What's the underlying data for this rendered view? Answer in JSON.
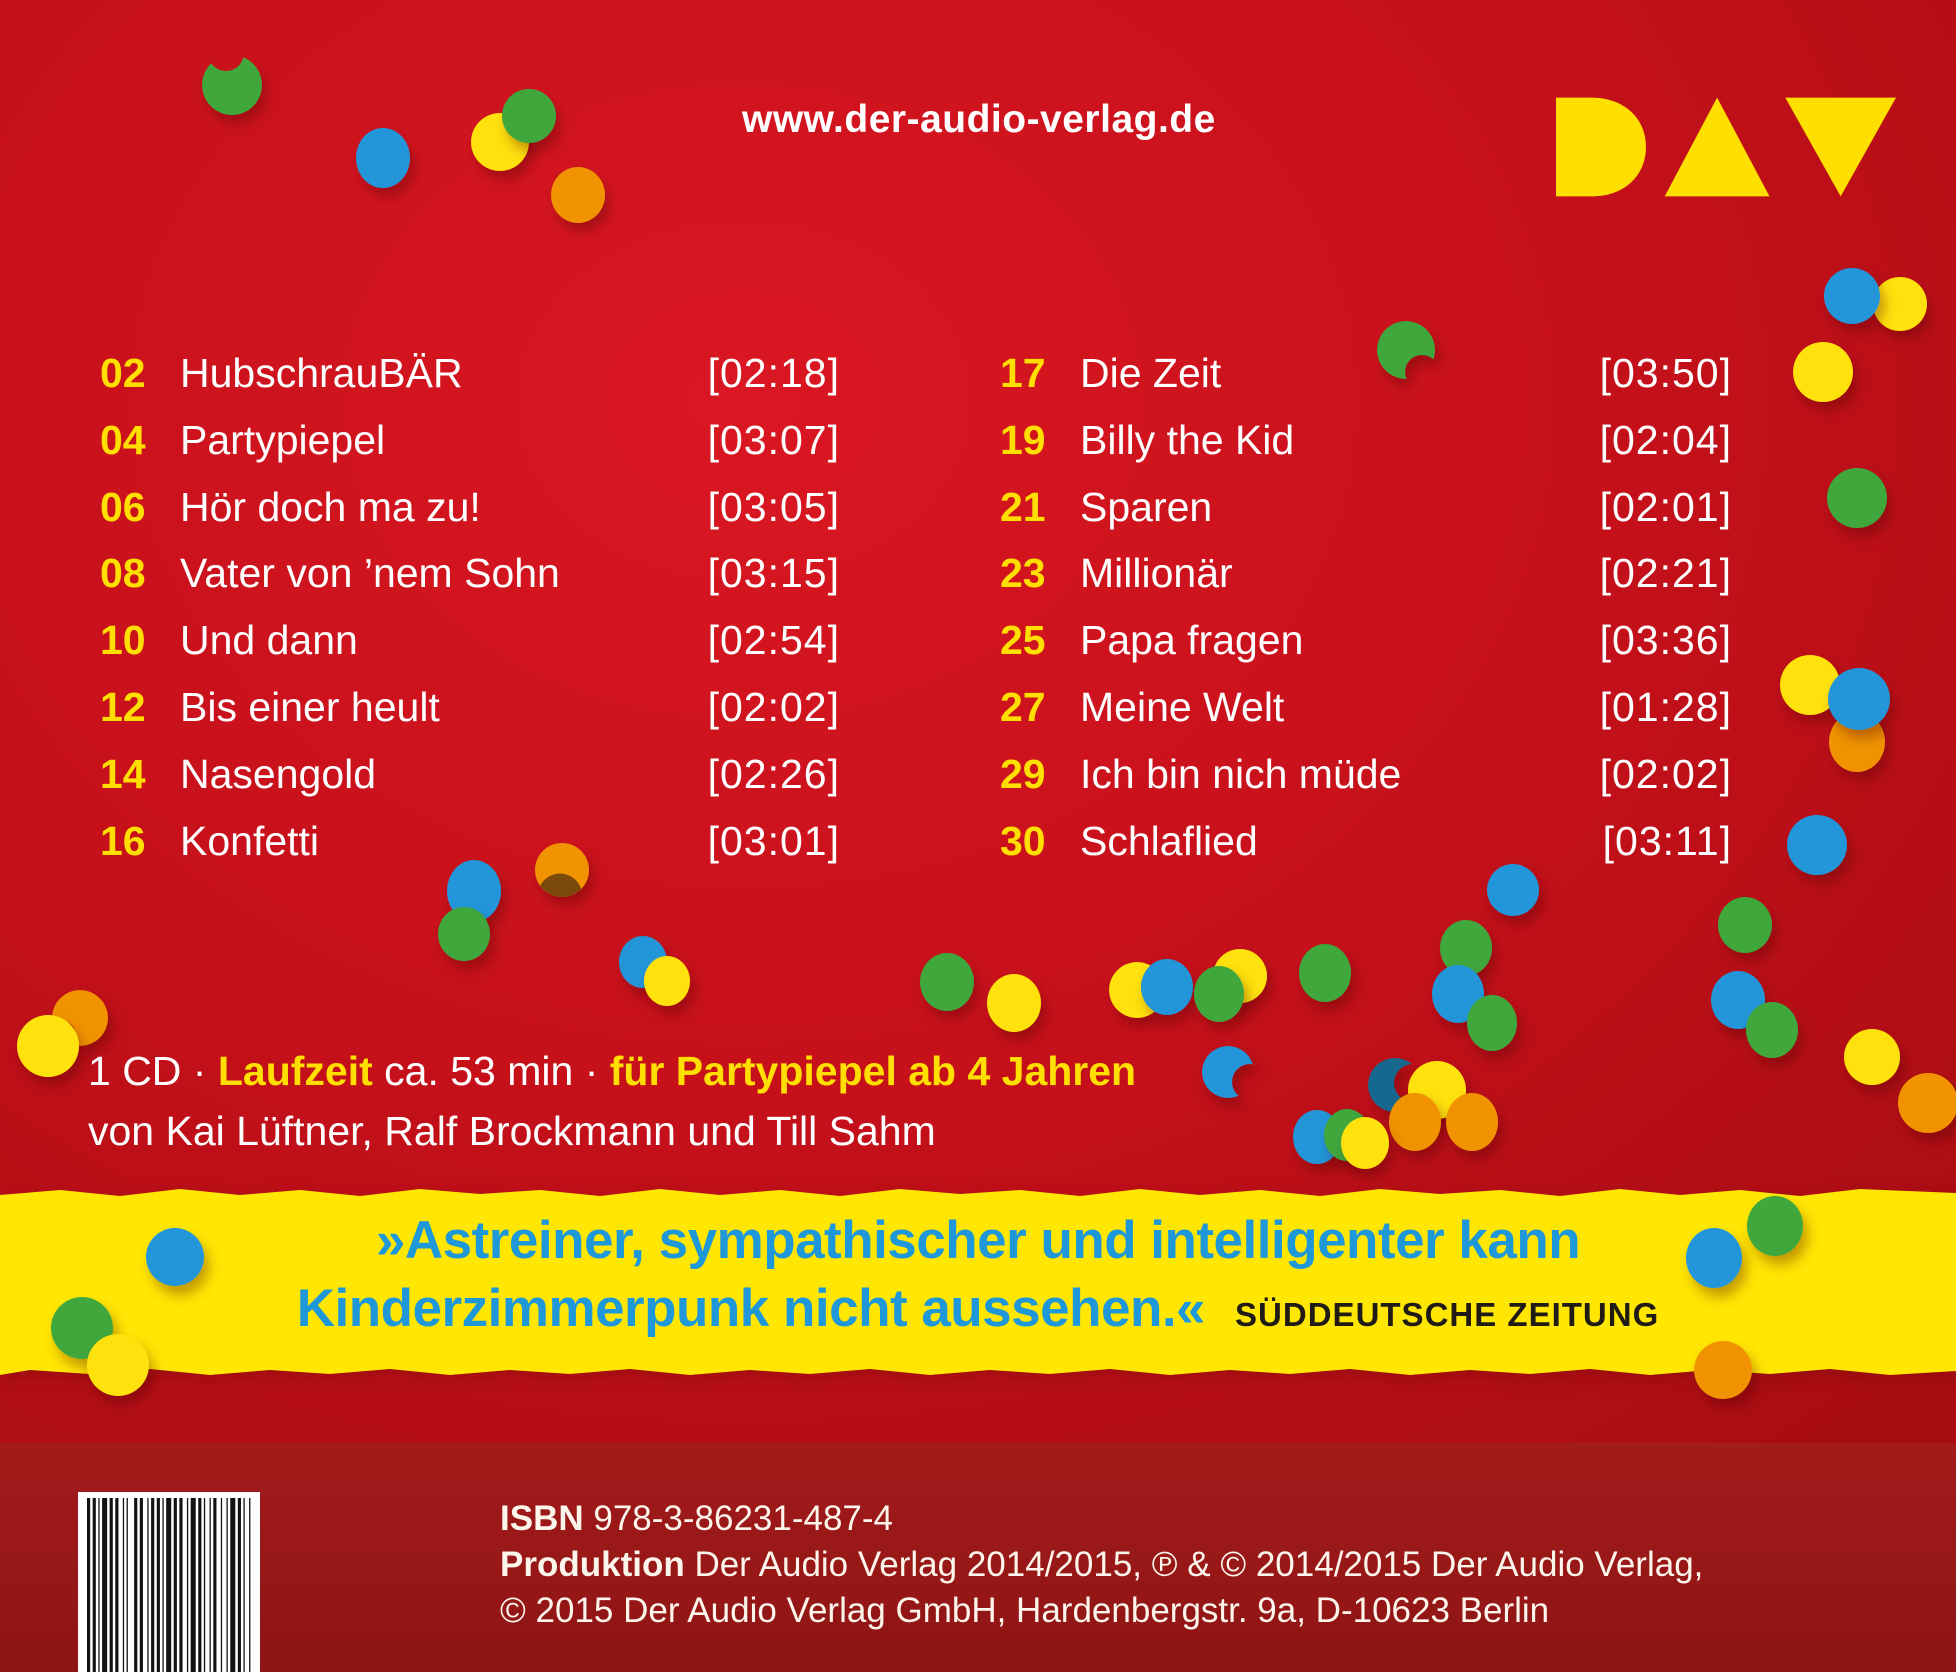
{
  "palette": {
    "background_red": "#c5101a",
    "footer_red": "#8e1414",
    "banner_yellow": "#ffe603",
    "yellow": "#ffe10a",
    "blue": "#2296d9",
    "green": "#3fa73d",
    "orange": "#f19300",
    "petrol": "#17678e",
    "quote_blue": "#1e98d9",
    "dark_text": "#201b15",
    "white": "#ffffff"
  },
  "header": {
    "website_url": "www.der-audio-verlag.de",
    "logo_name": "DAV – Der Audio Verlag"
  },
  "tracklist": {
    "left": [
      {
        "no": "02",
        "title": "HubschrauBÄR",
        "duration": "[02:18]"
      },
      {
        "no": "04",
        "title": "Partypiepel",
        "duration": "[03:07]"
      },
      {
        "no": "06",
        "title": "Hör doch ma zu!",
        "duration": "[03:05]"
      },
      {
        "no": "08",
        "title": "Vater von ’nem Sohn",
        "duration": "[03:15]"
      },
      {
        "no": "10",
        "title": "Und dann",
        "duration": "[02:54]"
      },
      {
        "no": "12",
        "title": "Bis einer heult",
        "duration": "[02:02]"
      },
      {
        "no": "14",
        "title": "Nasengold",
        "duration": "[02:26]"
      },
      {
        "no": "16",
        "title": "Konfetti",
        "duration": "[03:01]"
      }
    ],
    "right": [
      {
        "no": "17",
        "title": "Die Zeit",
        "duration": "[03:50]"
      },
      {
        "no": "19",
        "title": "Billy the Kid",
        "duration": "[02:04]"
      },
      {
        "no": "21",
        "title": "Sparen",
        "duration": "[02:01]"
      },
      {
        "no": "23",
        "title": "Millionär",
        "duration": "[02:21]"
      },
      {
        "no": "25",
        "title": "Papa fragen",
        "duration": "[03:36]"
      },
      {
        "no": "27",
        "title": "Meine Welt",
        "duration": "[01:28]"
      },
      {
        "no": "29",
        "title": "Ich bin nich müde",
        "duration": "[02:02]"
      },
      {
        "no": "30",
        "title": "Schlaflied",
        "duration": "[03:11]"
      }
    ]
  },
  "info": {
    "cd_prefix": "1 CD · ",
    "laufzeit_label": "Laufzeit",
    "laufzeit_value": " ca. 53 min · ",
    "audience": "für Partypiepel ab 4 Jahren",
    "credits": "von Kai Lüftner, Ralf Brockmann und Till Sahm"
  },
  "quote": {
    "line1": "»Astreiner, sympathischer und intelligenter kann",
    "line2": "Kinderzimmerpunk nicht aussehen.«",
    "source": "SÜDDEUTSCHE ZEITUNG"
  },
  "footer": {
    "isbn_label": "ISBN",
    "isbn_value": " 978-3-86231-487-4",
    "produktion_label": "Produktion",
    "produktion_value": " Der Audio Verlag 2014/2015, ℗ & © 2014/2015 Der Audio Verlag,",
    "copyright_line": "© 2015 Der Audio Verlag GmbH, Hardenbergstr. 9a, D-10623 Berlin"
  }
}
